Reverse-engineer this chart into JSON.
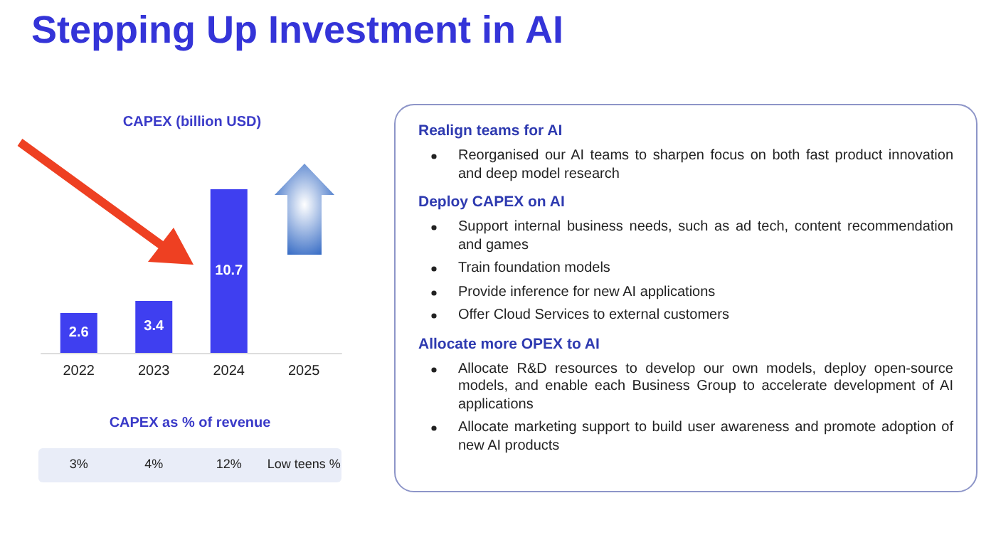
{
  "chart_data": [
    {
      "type": "bar",
      "title": "Stepping Up Investment in AI",
      "subtitle": "CAPEX (billion USD)",
      "categories": [
        "2022",
        "2023",
        "2024",
        "2025"
      ],
      "values": [
        2.6,
        3.4,
        10.7,
        null
      ],
      "color": "#3f3ff0",
      "data_labels": true,
      "annotations": [
        "CAPEX as % of revenue",
        "3%",
        "4%",
        "12%",
        "Low teens %"
      ]
    },
    {
      "type": "other",
      "title": "Realign teams for AI",
      "annotations": [
        "Reorganised our AI teams to sharpen focus on both fast product innovation and deep model research"
      ]
    },
    {
      "type": "other",
      "title": "Deploy CAPEX on AI",
      "annotations": [
        "Support internal business needs, such as ad tech, content recommendation and games",
        "Train foundation models",
        "Provide inference for new AI applications",
        "Offer Cloud Services to external customers"
      ]
    },
    {
      "type": "other",
      "title": "Allocate more OPEX to AI",
      "annotations": [
        "Allocate R&D resources to develop our own models, deploy open-source models, and enable each Business Group to accelerate development of AI applications",
        "Allocate marketing support to build user awareness and promote adoption of new AI products"
      ]
    }
  ]
}
